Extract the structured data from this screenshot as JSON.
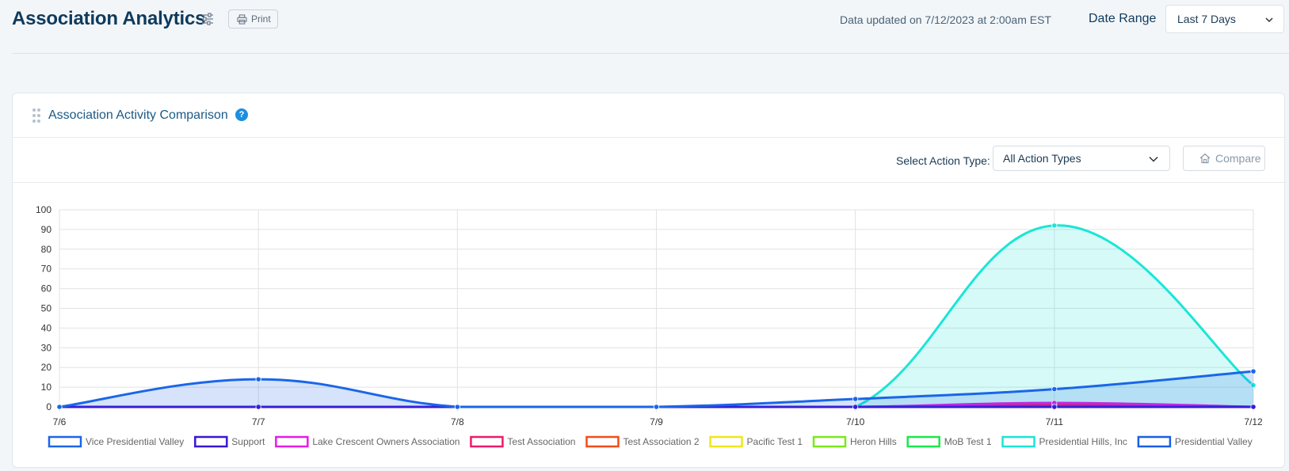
{
  "header": {
    "title": "Association Analytics",
    "print_label": "Print",
    "updated_text": "Data updated on 7/12/2023 at 2:00am EST",
    "date_range_label": "Date Range",
    "date_range_value": "Last 7 Days"
  },
  "card": {
    "title": "Association Activity Comparison",
    "help_glyph": "?",
    "action_type_label": "Select Action Type:",
    "action_type_value": "All Action Types",
    "compare_label": "Compare"
  },
  "colors": {
    "title": "#0e3a5c",
    "accent": "#1a8fe3"
  },
  "icons": {
    "filter": "sliders-icon",
    "print": "printer-icon",
    "drag": "drag-handle-icon",
    "help": "question-icon",
    "compare": "home-icon",
    "dropdown": "chevron-down-icon"
  },
  "chart_data": {
    "type": "line",
    "categories": [
      "7/6",
      "7/7",
      "7/8",
      "7/9",
      "7/10",
      "7/11",
      "7/12"
    ],
    "ylim": [
      0,
      100
    ],
    "yticks": [
      0,
      10,
      20,
      30,
      40,
      50,
      60,
      70,
      80,
      90,
      100
    ],
    "grid": true,
    "legend_position": "bottom",
    "series": [
      {
        "name": "Vice Presidential Valley",
        "color": "#1a66e8",
        "values": [
          0,
          14,
          0,
          0,
          4,
          9,
          18
        ],
        "fill": true
      },
      {
        "name": "Support",
        "color": "#3a16d6",
        "values": [
          0,
          0,
          0,
          0,
          0,
          0,
          0
        ],
        "fill": false
      },
      {
        "name": "Lake Crescent Owners Association",
        "color": "#e61ce6",
        "values": [
          0,
          0,
          0,
          0,
          0,
          2,
          0
        ],
        "fill": false
      },
      {
        "name": "Test Association",
        "color": "#ee1a6a",
        "values": [
          0,
          0,
          0,
          0,
          0,
          1,
          0
        ],
        "fill": false
      },
      {
        "name": "Test Association 2",
        "color": "#f04d1a",
        "values": [
          0,
          0,
          0,
          0,
          0,
          0,
          0
        ],
        "fill": false
      },
      {
        "name": "Pacific Test 1",
        "color": "#f0e61a",
        "values": [
          0,
          0,
          0,
          0,
          0,
          0,
          0
        ],
        "fill": false
      },
      {
        "name": "Heron Hills",
        "color": "#7ae81a",
        "values": [
          0,
          0,
          0,
          0,
          0,
          0,
          0
        ],
        "fill": false
      },
      {
        "name": "MoB Test 1",
        "color": "#1ae84a",
        "values": [
          0,
          0,
          0,
          0,
          0,
          0,
          0
        ],
        "fill": false
      },
      {
        "name": "Presidential Hills, Inc",
        "color": "#1ae6d6",
        "values": [
          0,
          0,
          0,
          0,
          0,
          92,
          11
        ],
        "fill": true
      },
      {
        "name": "Presidential Valley",
        "color": "#1a5fe6",
        "values": [
          0,
          0,
          0,
          0,
          0,
          0,
          0
        ],
        "fill": false
      }
    ]
  }
}
